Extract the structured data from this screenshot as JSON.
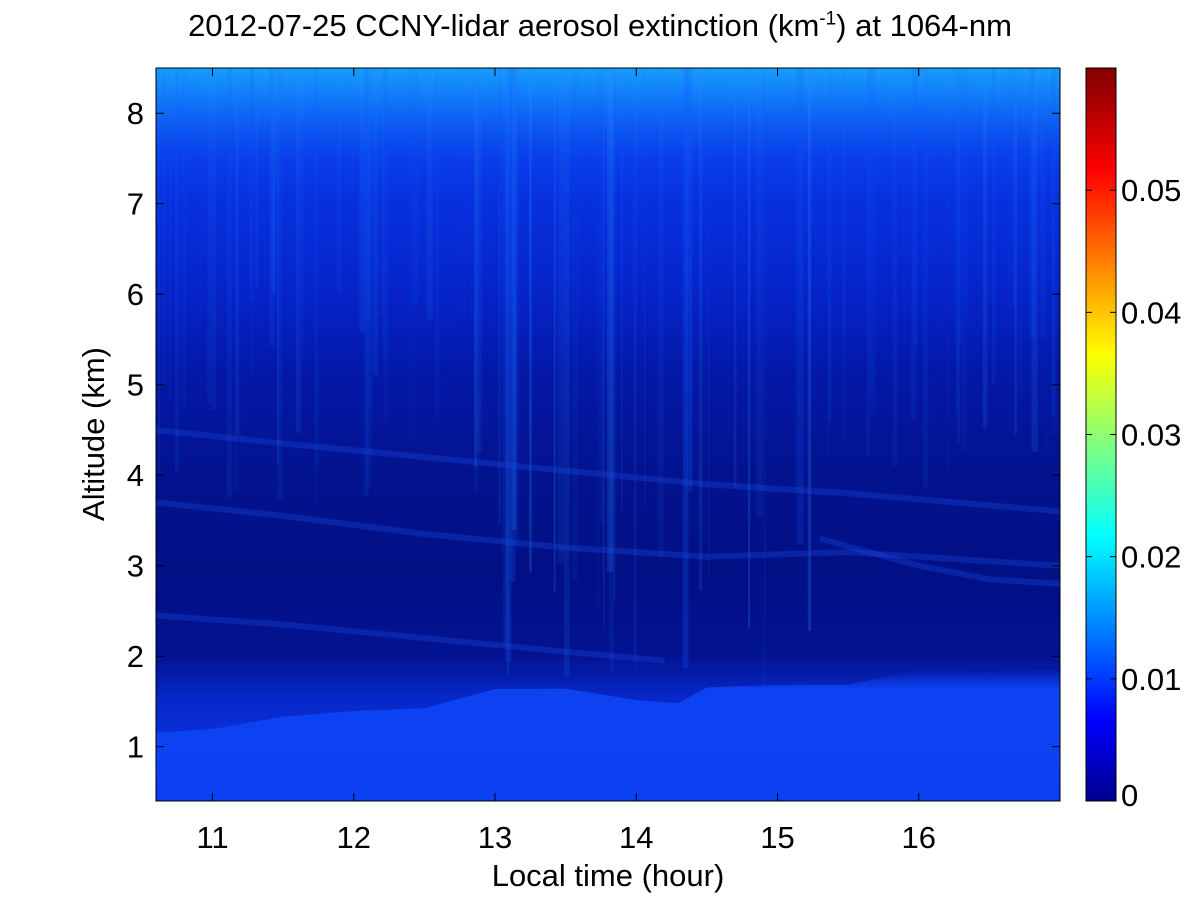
{
  "chart_data": {
    "type": "heatmap",
    "title": {
      "prefix": "2012-07-25 CCNY-lidar aerosol extinction (km",
      "superscript": "-1",
      "suffix": ") at 1064-nm"
    },
    "xlabel": "Local time (hour)",
    "ylabel": "Altitude (km)",
    "xlim": [
      10.6,
      17.0
    ],
    "ylim": [
      0.4,
      8.5
    ],
    "x_ticks": [
      "11",
      "12",
      "13",
      "14",
      "15",
      "16"
    ],
    "y_ticks": [
      "1",
      "2",
      "3",
      "4",
      "5",
      "6",
      "7",
      "8"
    ],
    "colorbar": {
      "min": 0,
      "max": 0.06,
      "colormap": "jet",
      "ticks": [
        "0",
        "0.01",
        "0.02",
        "0.03",
        "0.04",
        "0.05"
      ]
    },
    "description_layers": [
      {
        "name": "boundary-layer",
        "altitude_top_km": [
          1.3,
          1.7
        ],
        "extinction": 0.008
      },
      {
        "name": "free-troposphere",
        "altitude_km": [
          2.0,
          5.5
        ],
        "extinction": 0.002
      },
      {
        "name": "upper-background",
        "altitude_km": [
          6.0,
          8.5
        ],
        "extinction": 0.01
      }
    ]
  }
}
